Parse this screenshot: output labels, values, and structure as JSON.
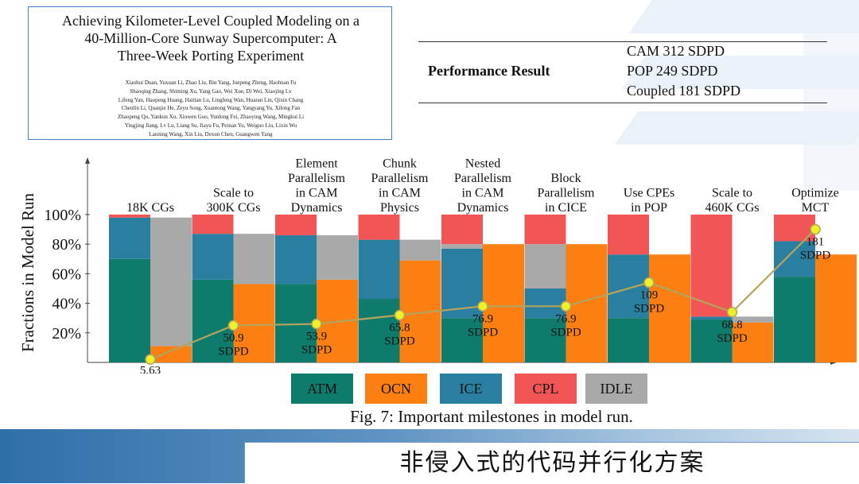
{
  "paper": {
    "title_lines": [
      "Achieving Kilometer-Level Coupled Modeling on a",
      "40-Million-Core Sunway Supercomputer: A",
      "Three-Week Porting Experiment"
    ],
    "author_lines": [
      "Xiaohui Duan, Yuxuan Li, Zhao Liu, Bin Yang, Juepeng Zheng, Haohuan Fu",
      "Shaoqing Zhang, Shiming Xu, Yang Gao, Wei Xue, Di Wei, Xiaojing Lv",
      "Lifeng Yan, Haopeng Huang, Haitian Lu, Lingfeng Wan, Huaran Lin, Qixin Chang",
      "Chenlin Li, Quanjie He, Zeyu Song, Xuantong Wang, Yangyang Yu, Xilong Fan",
      "Zhaopeng Qu, Yankun Xu, Xiuwen Guo, Yunlong Fei, Zhaoying Wang, Mingkui Li",
      "Yingjing Jiang, Lv Lu, Liang Su, Jiayu Fu, Peinan Yu, Weiguo Liu, Lixin Wu",
      "Lanning Wang, Xin Liu, Dexun Chen, Guangwen Yang"
    ]
  },
  "performance": {
    "label": "Performance Result",
    "lines": [
      "CAM 312 SDPD",
      "POP 249 SDPD",
      "Coupled 181 SDPD"
    ]
  },
  "caption": "Fig. 7: Important milestones in model run.",
  "footer_title": "非侵入式的代码并行化方案",
  "colors": {
    "ATM": "#0f7b6c",
    "ICE": "#2a7fa0",
    "CPL": "#f25555",
    "IDLE": "#a9a9a9",
    "OCN": "#fb7f12",
    "line": "#b5a45c",
    "marker": "#eef02a"
  },
  "chart_data": {
    "type": "bar",
    "ylabel": "Fractions in Model Run",
    "yticks": [
      "20%",
      "40%",
      "60%",
      "80%",
      "100%"
    ],
    "ylim": [
      0,
      100
    ],
    "legend": [
      "ATM",
      "OCN",
      "ICE",
      "CPL",
      "IDLE"
    ],
    "legend_placement": "bottom",
    "categories": [
      "18K CGs",
      "Scale to 300K CGs",
      "Element Parallelism in CAM Dynamics",
      "Chunk Parallelism in CAM Physics",
      "Nested Parallelism in CAM Dynamics",
      "Block Parallelism in CICE",
      "Use CPEs in POP",
      "Scale to 460K CGs",
      "Optimize MCT"
    ],
    "category_labels": [
      [
        "18K CGs"
      ],
      [
        "Scale to",
        "300K CGs"
      ],
      [
        "Element",
        "Parallelism",
        "in CAM",
        "Dynamics"
      ],
      [
        "Chunk",
        "Parallelism",
        "in CAM",
        "Physics"
      ],
      [
        "Nested",
        "Parallelism",
        "in CAM",
        "Dynamics"
      ],
      [
        "Block",
        "Parallelism",
        "in CICE"
      ],
      [
        "Use CPEs",
        "in POP"
      ],
      [
        "Scale to",
        "460K CGs"
      ],
      [
        "Optimize",
        "MCT"
      ]
    ],
    "left_stack": [
      {
        "ATM": 70,
        "ICE": 28,
        "CPL": 2
      },
      {
        "ATM": 56,
        "ICE": 31,
        "CPL": 13
      },
      {
        "ATM": 53,
        "ICE": 33,
        "CPL": 14
      },
      {
        "ATM": 43,
        "ICE": 40,
        "CPL": 17
      },
      {
        "ATM": 30,
        "ICE": 47,
        "IDLE": 3,
        "CPL": 20
      },
      {
        "ATM": 30,
        "ICE": 20,
        "IDLE": 30,
        "CPL": 20
      },
      {
        "ATM": 30,
        "ICE": 43,
        "CPL": 27
      },
      {
        "ATM": 29,
        "ICE": 2,
        "CPL": 69
      },
      {
        "ATM": 58,
        "ICE": 24,
        "CPL": 18
      }
    ],
    "right_stack": [
      {
        "OCN": 11,
        "IDLE": 87
      },
      {
        "OCN": 53,
        "IDLE": 34
      },
      {
        "OCN": 56,
        "IDLE": 30
      },
      {
        "OCN": 69,
        "IDLE": 14
      },
      {
        "OCN": 80
      },
      {
        "OCN": 80
      },
      {
        "OCN": 73
      },
      {
        "OCN": 27,
        "IDLE": 4
      },
      {
        "OCN": 73
      }
    ],
    "sdpd_series": {
      "values": [
        5.63,
        50.9,
        53.9,
        65.8,
        76.9,
        76.9,
        109,
        68.8,
        181
      ],
      "line_y": [
        2,
        25,
        26,
        32,
        38,
        38,
        54,
        34,
        90
      ],
      "labels": [
        [
          "5.63",
          "SDPD"
        ],
        [
          "50.9",
          "SDPD"
        ],
        [
          "53.9",
          "SDPD"
        ],
        [
          "65.8",
          "SDPD"
        ],
        [
          "76.9",
          "SDPD"
        ],
        [
          "76.9",
          "SDPD"
        ],
        [
          "109",
          "SDPD"
        ],
        [
          "68.8",
          "SDPD"
        ],
        [
          "181",
          "SDPD"
        ]
      ]
    }
  }
}
